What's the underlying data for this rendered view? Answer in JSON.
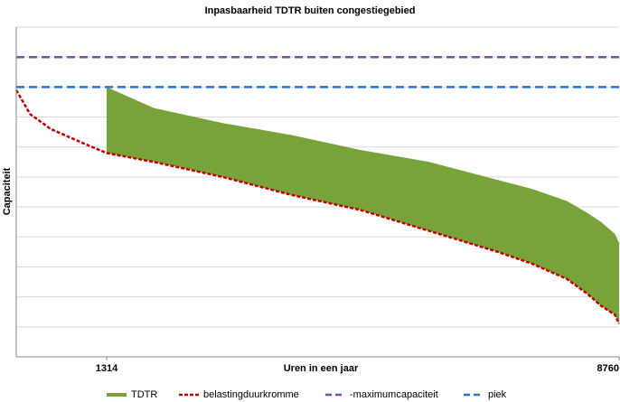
{
  "chart_data": {
    "type": "area",
    "title": "Inpasbaarheid TDTR buiten congestiegebied",
    "x_label": "Uren in een jaar",
    "y_label": "Capaciteit",
    "x": [
      0,
      200,
      500,
      1000,
      1314,
      2000,
      3000,
      4000,
      5000,
      6000,
      7000,
      7500,
      8000,
      8300,
      8500,
      8700,
      8760
    ],
    "xlim": [
      0,
      8760
    ],
    "xticks": [
      1314,
      8760
    ],
    "ylim": [
      0,
      11
    ],
    "ygrid": [
      1,
      2,
      3,
      4,
      5,
      6,
      7,
      8,
      9,
      10,
      11
    ],
    "series": [
      {
        "name": "TDTR",
        "color": "#77a33a",
        "style": "area",
        "stacked_on": 1,
        "values": [
          null,
          null,
          null,
          null,
          2.2,
          1.8,
          1.8,
          2.0,
          2.0,
          2.3,
          2.4,
          2.5,
          2.6,
          2.7,
          2.8,
          2.7,
          2.7
        ]
      },
      {
        "name": "belastingduurkromme",
        "color": "#c00000",
        "style": "dashed",
        "values": [
          8.9,
          8.1,
          7.6,
          7.1,
          6.8,
          6.5,
          6.0,
          5.4,
          4.9,
          4.2,
          3.5,
          3.1,
          2.6,
          2.1,
          1.7,
          1.4,
          1.1
        ]
      },
      {
        "name": "-maximumcapaciteit",
        "color": "#7b4fa6",
        "style": "dashed",
        "values": [
          10,
          10,
          10,
          10,
          10,
          10,
          10,
          10,
          10,
          10,
          10,
          10,
          10,
          10,
          10,
          10,
          10
        ]
      },
      {
        "name": "piek",
        "color": "#2e75c9",
        "style": "dashed",
        "values": [
          9,
          9,
          9,
          9,
          9,
          9,
          9,
          9,
          9,
          9,
          9,
          9,
          9,
          9,
          9,
          9,
          9
        ]
      }
    ],
    "grid": true
  }
}
